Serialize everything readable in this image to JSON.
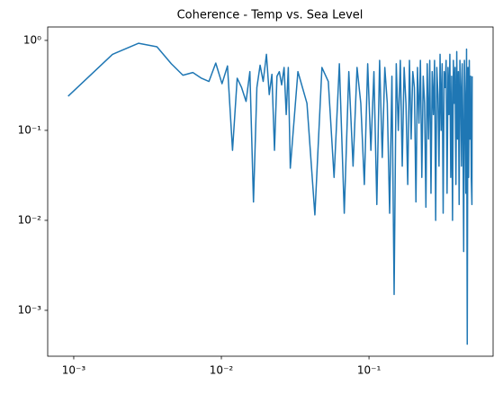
{
  "chart_data": {
    "type": "line",
    "title": "Coherence - Temp vs. Sea Level",
    "color": "#1f77b4",
    "xscale": "log",
    "yscale": "log",
    "grid": false,
    "xlim": [
      0.000666,
      0.693
    ],
    "ylim": [
      0.000309,
      1.41
    ],
    "xticks": [
      {
        "value": 0.001,
        "label": "10⁻³"
      },
      {
        "value": 0.01,
        "label": "10⁻²"
      },
      {
        "value": 0.1,
        "label": "10⁻¹"
      }
    ],
    "yticks": [
      {
        "value": 0.001,
        "label": "10⁻³"
      },
      {
        "value": 0.01,
        "label": "10⁻²"
      },
      {
        "value": 0.1,
        "label": "10⁻¹"
      },
      {
        "value": 1,
        "label": "10⁰"
      }
    ],
    "x": [
      0.000916,
      0.00183,
      0.00275,
      0.00366,
      0.00458,
      0.00549,
      0.00641,
      0.00733,
      0.00824,
      0.00916,
      0.0101,
      0.011,
      0.0119,
      0.0128,
      0.0137,
      0.0147,
      0.0156,
      0.0165,
      0.0174,
      0.0183,
      0.0192,
      0.0202,
      0.0211,
      0.022,
      0.0229,
      0.0238,
      0.0247,
      0.0256,
      0.0266,
      0.0275,
      0.0284,
      0.0293,
      0.033,
      0.038,
      0.043,
      0.048,
      0.053,
      0.058,
      0.063,
      0.068,
      0.073,
      0.078,
      0.083,
      0.088,
      0.093,
      0.098,
      0.103,
      0.108,
      0.113,
      0.118,
      0.123,
      0.128,
      0.133,
      0.138,
      0.143,
      0.148,
      0.153,
      0.158,
      0.163,
      0.168,
      0.173,
      0.178,
      0.183,
      0.188,
      0.193,
      0.198,
      0.203,
      0.208,
      0.213,
      0.218,
      0.223,
      0.228,
      0.233,
      0.238,
      0.243,
      0.248,
      0.253,
      0.258,
      0.263,
      0.268,
      0.273,
      0.278,
      0.283,
      0.288,
      0.293,
      0.298,
      0.303,
      0.308,
      0.313,
      0.318,
      0.323,
      0.328,
      0.333,
      0.338,
      0.343,
      0.348,
      0.353,
      0.358,
      0.363,
      0.368,
      0.373,
      0.378,
      0.383,
      0.388,
      0.393,
      0.398,
      0.403,
      0.408,
      0.413,
      0.418,
      0.423,
      0.428,
      0.433,
      0.438,
      0.443,
      0.448,
      0.453,
      0.458,
      0.463,
      0.468,
      0.473,
      0.478,
      0.483,
      0.488,
      0.493,
      0.498,
      0.5
    ],
    "values": [
      0.24,
      0.7,
      0.93,
      0.85,
      0.55,
      0.41,
      0.44,
      0.38,
      0.35,
      0.56,
      0.33,
      0.52,
      0.06,
      0.38,
      0.3,
      0.21,
      0.45,
      0.016,
      0.3,
      0.53,
      0.35,
      0.7,
      0.25,
      0.42,
      0.06,
      0.4,
      0.45,
      0.32,
      0.5,
      0.15,
      0.5,
      0.038,
      0.45,
      0.2,
      0.0115,
      0.5,
      0.35,
      0.03,
      0.55,
      0.012,
      0.45,
      0.04,
      0.5,
      0.2,
      0.025,
      0.55,
      0.06,
      0.45,
      0.015,
      0.6,
      0.05,
      0.5,
      0.2,
      0.012,
      0.4,
      0.0015,
      0.55,
      0.1,
      0.6,
      0.04,
      0.5,
      0.2,
      0.025,
      0.6,
      0.08,
      0.45,
      0.3,
      0.016,
      0.5,
      0.12,
      0.6,
      0.03,
      0.4,
      0.2,
      0.014,
      0.55,
      0.08,
      0.6,
      0.02,
      0.45,
      0.15,
      0.6,
      0.01,
      0.5,
      0.25,
      0.04,
      0.7,
      0.1,
      0.55,
      0.012,
      0.45,
      0.3,
      0.6,
      0.02,
      0.5,
      0.15,
      0.7,
      0.03,
      0.4,
      0.01,
      0.6,
      0.2,
      0.5,
      0.025,
      0.75,
      0.08,
      0.45,
      0.015,
      0.6,
      0.3,
      0.04,
      0.55,
      0.1,
      0.0045,
      0.6,
      0.2,
      0.02,
      0.8,
      0.00042,
      0.5,
      0.03,
      0.6,
      0.08,
      0.4,
      0.03,
      0.015,
      0.4
    ]
  }
}
